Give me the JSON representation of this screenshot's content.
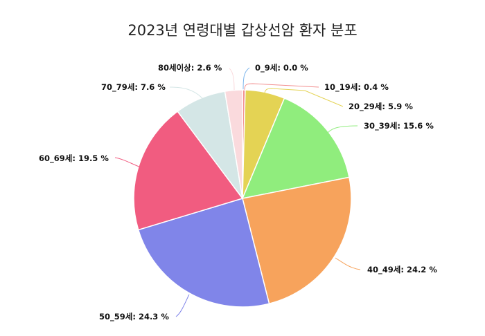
{
  "chart": {
    "title": "2023년 연령대별 갑상선암 환자 분포"
  },
  "chart_data": {
    "type": "pie",
    "title": "2023년 연령대별 갑상선암 환자 분포",
    "categories": [
      "0_9세",
      "10_19세",
      "20_29세",
      "30_39세",
      "40_49세",
      "50_59세",
      "60_69세",
      "70_79세",
      "80세이상"
    ],
    "values": [
      0.0,
      0.4,
      5.9,
      15.6,
      24.2,
      24.3,
      19.5,
      7.6,
      2.6
    ],
    "unit": "%",
    "colors": [
      "#7cb5ec",
      "#f28f8f",
      "#e4d354",
      "#90ed7d",
      "#f7a35c",
      "#8085e9",
      "#f15c80",
      "#d4e6e6",
      "#fadadd"
    ],
    "start_angle": "top, clockwise",
    "labels": [
      "0_9세: 0.0 %",
      "10_19세: 0.4 %",
      "20_29세: 5.9 %",
      "30_39세: 15.6 %",
      "40_49세: 24.2 %",
      "50_59세: 24.3 %",
      "60_69세: 19.5 %",
      "70_79세: 7.6 %",
      "80세이상: 2.6 %"
    ]
  }
}
